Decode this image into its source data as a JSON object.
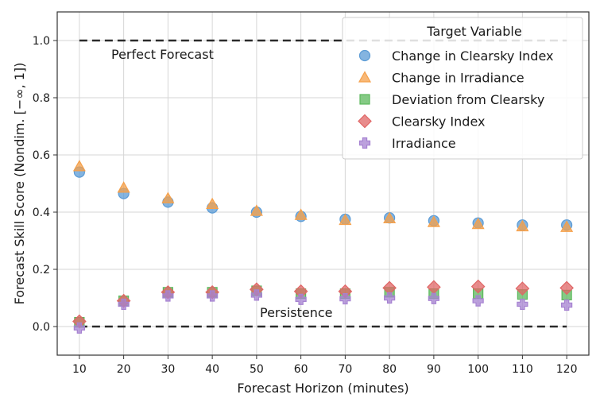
{
  "chart_data": {
    "type": "scatter",
    "xlabel": "Forecast Horizon (minutes)",
    "ylabel": "Forecast Skill Score (Nondim. [−∞, 1])",
    "x": [
      10,
      20,
      30,
      40,
      50,
      60,
      70,
      80,
      90,
      100,
      110,
      120
    ],
    "xlim": [
      5,
      125
    ],
    "ylim": [
      -0.1,
      1.1
    ],
    "xticks": [
      "10",
      "20",
      "30",
      "40",
      "50",
      "60",
      "70",
      "80",
      "90",
      "100",
      "110",
      "120"
    ],
    "yticks": [
      "0.0",
      "0.2",
      "0.4",
      "0.6",
      "0.8",
      "1.0"
    ],
    "ytick_values": [
      0.0,
      0.2,
      0.4,
      0.6,
      0.8,
      1.0
    ],
    "grid": true,
    "legend": {
      "title": "Target Variable",
      "placement": "top-right"
    },
    "series": [
      {
        "name": "Change in Clearsky Index",
        "marker": "circle",
        "color": "#5b9bd5",
        "values": [
          0.54,
          0.465,
          0.435,
          0.415,
          0.4,
          0.385,
          0.375,
          0.38,
          0.37,
          0.362,
          0.355,
          0.355
        ]
      },
      {
        "name": "Change in Irradiance",
        "marker": "triangle",
        "color": "#f5a04a",
        "values": [
          0.56,
          0.485,
          0.448,
          0.428,
          0.404,
          0.39,
          0.372,
          0.378,
          0.365,
          0.358,
          0.35,
          0.348
        ]
      },
      {
        "name": "Deviation from Clearsky",
        "marker": "square",
        "color": "#5cb85c",
        "values": [
          0.015,
          0.09,
          0.12,
          0.12,
          0.125,
          0.115,
          0.115,
          0.12,
          0.115,
          0.115,
          0.112,
          0.11
        ]
      },
      {
        "name": "Clearsky Index",
        "marker": "diamond",
        "color": "#e06666",
        "values": [
          0.018,
          0.09,
          0.12,
          0.12,
          0.13,
          0.123,
          0.123,
          0.135,
          0.138,
          0.14,
          0.133,
          0.135
        ]
      },
      {
        "name": "Irradiance",
        "marker": "plus",
        "color": "#a682d1",
        "values": [
          -0.005,
          0.078,
          0.107,
          0.107,
          0.11,
          0.095,
          0.097,
          0.1,
          0.098,
          0.09,
          0.078,
          0.075
        ]
      }
    ],
    "reference_lines": [
      {
        "label": "Perfect Forecast",
        "y": 1.0,
        "x_start": 10,
        "x_end": 120
      },
      {
        "label": "Persistence",
        "y": 0.0,
        "x_start": 10,
        "x_end": 120
      }
    ]
  }
}
